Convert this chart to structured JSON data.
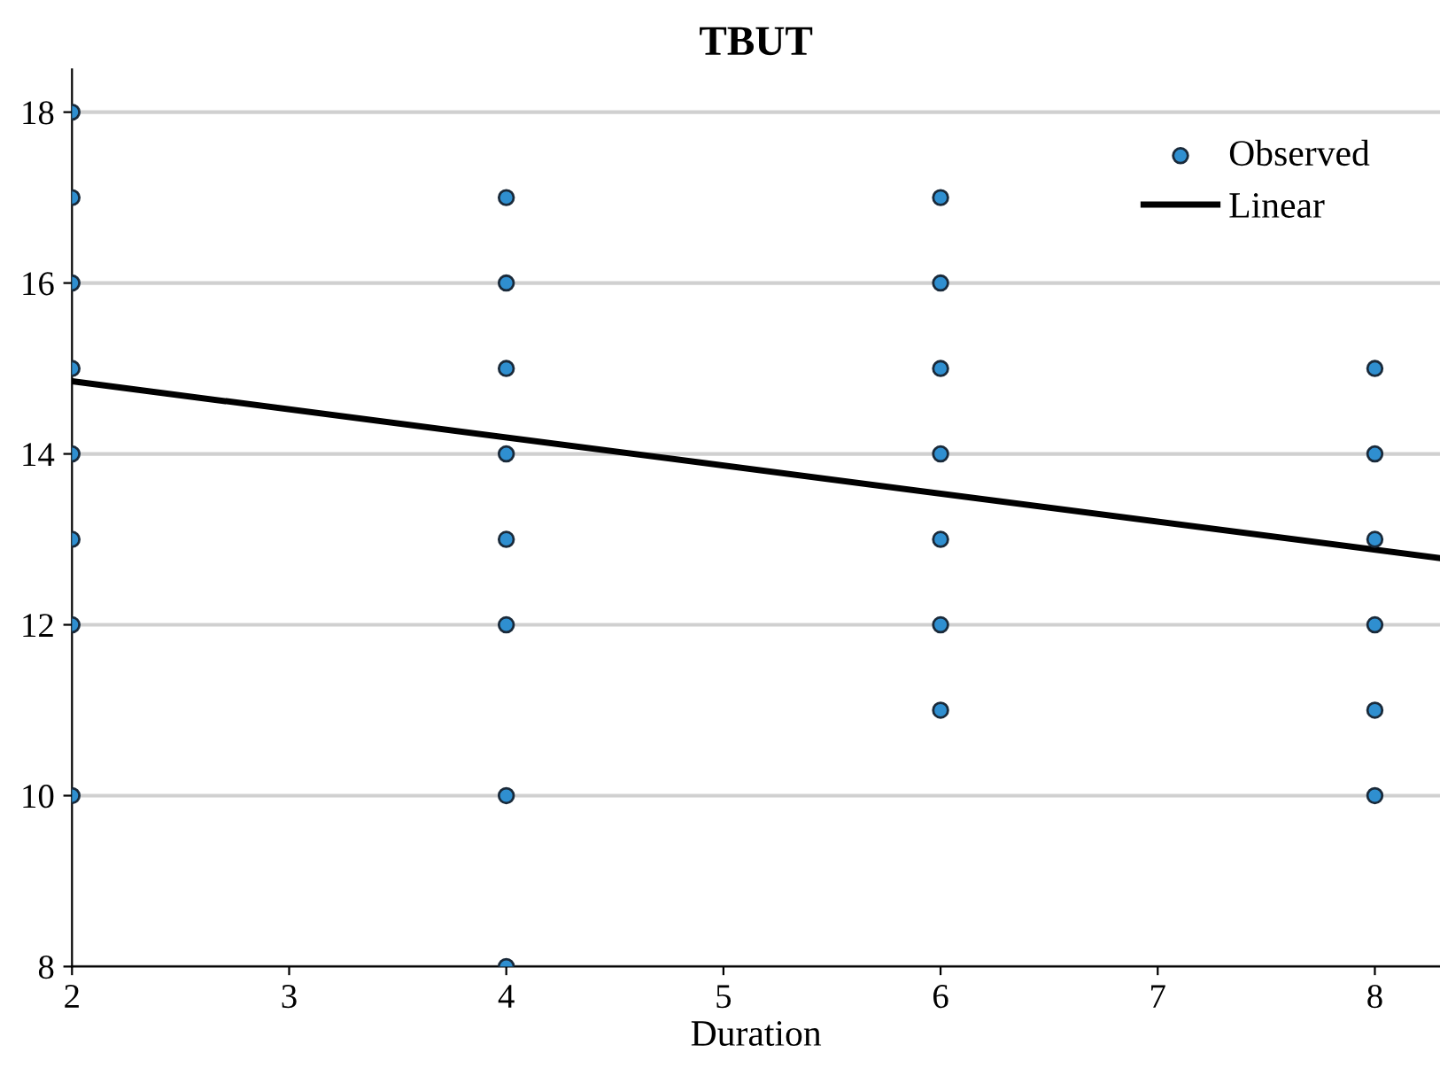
{
  "chart_data": {
    "type": "scatter",
    "title": "TBUT",
    "xlabel": "Duration",
    "xlim": [
      2,
      8.3
    ],
    "xticks": [
      2,
      3,
      4,
      5,
      6,
      7,
      8
    ],
    "ylim": [
      8,
      18.5
    ],
    "yticks": [
      8,
      10,
      12,
      14,
      16,
      18
    ],
    "grid": "y",
    "legend": "top right",
    "marker": "circle",
    "series": [
      {
        "name": "Observed",
        "color": "#2f8fd0",
        "x": [
          2,
          2,
          2,
          2,
          2,
          2,
          2,
          2,
          4,
          4,
          4,
          4,
          4,
          4,
          4,
          4,
          6,
          6,
          6,
          6,
          6,
          6,
          6,
          8,
          8,
          8,
          8,
          8,
          8
        ],
        "values": [
          18,
          17,
          16,
          15,
          14,
          13,
          12,
          10,
          17,
          16,
          15,
          14,
          13,
          12,
          10,
          8,
          17,
          16,
          15,
          14,
          13,
          12,
          11,
          15,
          14,
          13,
          12,
          11,
          10
        ]
      },
      {
        "name": "Linear",
        "type": "line",
        "color": "#000000",
        "marker": "none",
        "x": [
          2,
          8.3
        ],
        "values": [
          14.85,
          12.78
        ]
      }
    ]
  }
}
